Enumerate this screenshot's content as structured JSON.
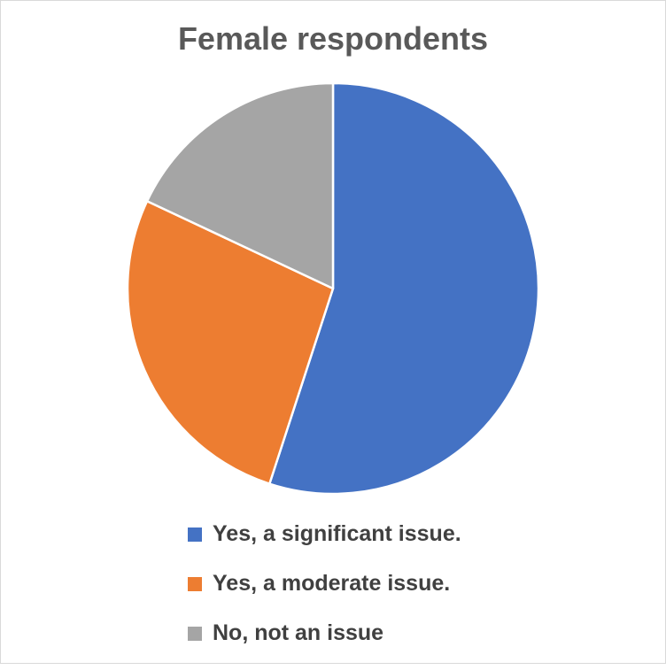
{
  "chart_data": {
    "type": "pie",
    "title": "Female respondents",
    "categories": [
      "Yes, a significant issue.",
      "Yes, a moderate issue.",
      "No, not an issue"
    ],
    "values": [
      55,
      27,
      18
    ],
    "colors": [
      "#4472C4",
      "#ED7D31",
      "#A5A5A5"
    ],
    "start_angle_deg": 0,
    "direction": "clockwise",
    "legend_position": "bottom"
  }
}
